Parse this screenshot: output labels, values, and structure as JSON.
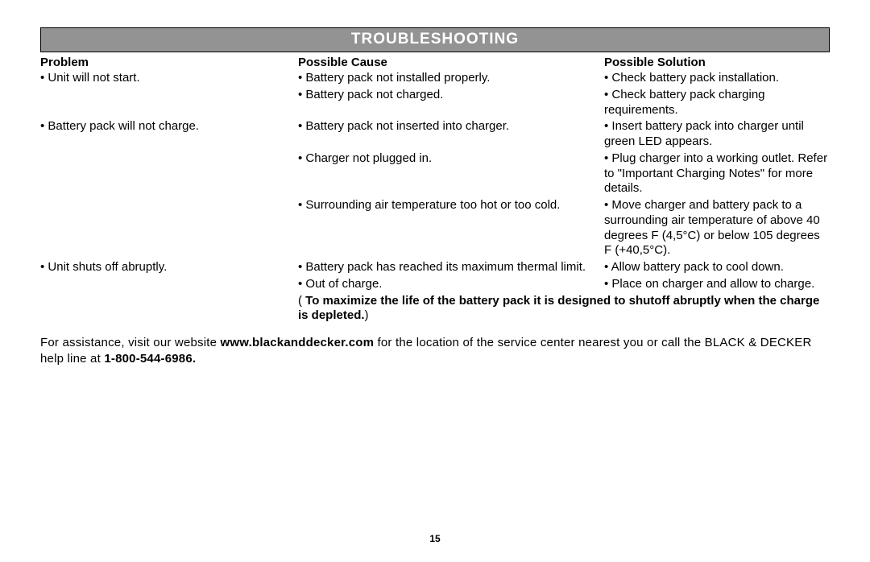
{
  "title": "TROUBLESHOOTING",
  "headers": {
    "problem": "Problem",
    "cause": "Possible Cause",
    "solution": "Possible Solution"
  },
  "rows": {
    "r1": {
      "problem": "• Unit will not start.",
      "cause": "• Battery pack not installed properly.",
      "solution": "• Check battery pack installation."
    },
    "r2": {
      "problem": "",
      "cause": "• Battery pack not charged.",
      "solution": "• Check battery pack charging requirements."
    },
    "r3": {
      "problem": "• Battery pack will not charge.",
      "cause": "• Battery pack not inserted into charger.",
      "solution": "• Insert battery pack into charger until green LED appears."
    },
    "r4": {
      "problem": "",
      "cause": "• Charger not plugged in.",
      "solution": "• Plug charger into a working outlet.  Refer to \"Important Charging Notes\" for more details."
    },
    "r5": {
      "problem": "",
      "cause": "• Surrounding air temperature too hot or too cold.",
      "solution": "• Move charger and battery pack to a surrounding air temperature of above 40 degrees F (4,5°C) or below 105 degrees F (+40,5°C)."
    },
    "r6": {
      "problem": "• Unit shuts off abruptly.",
      "cause": "• Battery pack has reached its maximum thermal limit.",
      "solution": "• Allow battery pack to cool down."
    },
    "r7": {
      "problem": "",
      "cause": "• Out of charge.",
      "solution": "• Place on charger and allow to charge."
    }
  },
  "note_open": "( ",
  "note_bold": "To maximize the life of the battery pack it is designed to shutoff abruptly when the charge is depleted.",
  "note_close": ")",
  "assist": {
    "pre": "For assistance, visit our website ",
    "url": "www.blackanddecker.com",
    "mid": " for the location of the service center nearest you or call the BLACK & DECKER help line at ",
    "phone": "1-800-544-6986.",
    "post": ""
  },
  "page_number": "15",
  "colors": {
    "title_bg": "#939393",
    "title_text": "#ffffff",
    "body_text": "#000000",
    "page_bg": "#ffffff"
  }
}
